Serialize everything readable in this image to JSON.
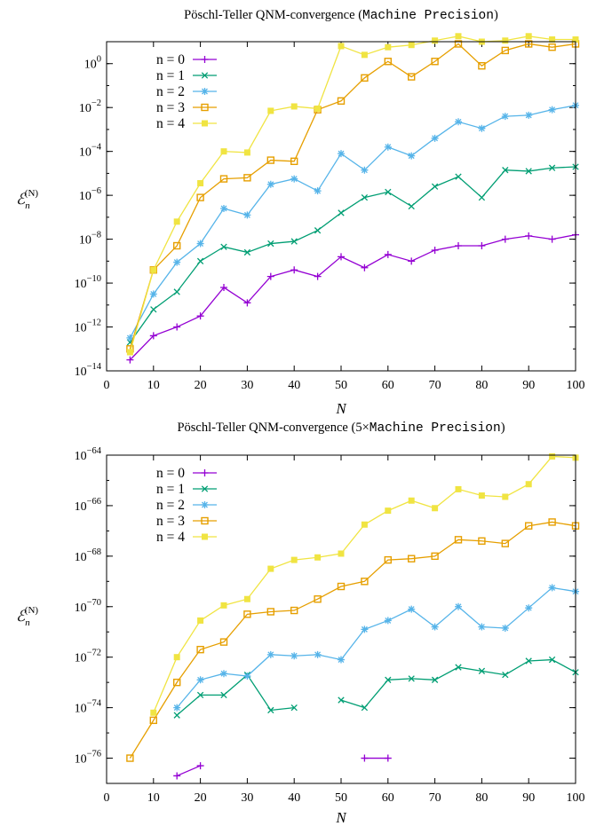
{
  "chart_data": [
    {
      "type": "line",
      "title": "Pöschl-Teller QNM-convergence",
      "title_mono": "Machine Precision",
      "title_prefix": "",
      "xlabel": "N",
      "ylabel": "E_n^(N)",
      "ylabel_main": "ℰ",
      "ylabel_sub": "n",
      "ylabel_sup": "(N)",
      "yscale": "log",
      "xlim": [
        0,
        100
      ],
      "ylim_exp": [
        -14,
        1
      ],
      "xticks": [
        "0",
        "10",
        "20",
        "30",
        "40",
        "50",
        "60",
        "70",
        "80",
        "90",
        "100"
      ],
      "yticks": [
        {
          "exp": 0,
          "label": "0"
        },
        {
          "exp": -2,
          "label": "−2"
        },
        {
          "exp": -4,
          "label": "−4"
        },
        {
          "exp": -6,
          "label": "−6"
        },
        {
          "exp": -8,
          "label": "−8"
        },
        {
          "exp": -10,
          "label": "−10"
        },
        {
          "exp": -12,
          "label": "−12"
        },
        {
          "exp": -14,
          "label": "−14"
        }
      ],
      "legend_position": "top-left",
      "series": [
        {
          "name": "n = 0",
          "color": "#9400d3",
          "marker": "plus",
          "x": [
            5,
            10,
            15,
            20,
            25,
            30,
            35,
            40,
            45,
            50,
            55,
            60,
            65,
            70,
            75,
            80,
            85,
            90,
            95,
            100
          ],
          "y_exp": [
            -13.5,
            -12.4,
            -12.0,
            -11.5,
            -10.2,
            -10.9,
            -9.7,
            -9.4,
            -9.7,
            -8.8,
            -9.3,
            -8.7,
            -9.0,
            -8.5,
            -8.3,
            -8.3,
            -8.0,
            -7.85,
            -8.0,
            -7.8
          ]
        },
        {
          "name": "n = 1",
          "color": "#009e73",
          "marker": "cross",
          "x": [
            5,
            10,
            15,
            20,
            25,
            30,
            35,
            40,
            45,
            50,
            55,
            60,
            65,
            70,
            75,
            80,
            85,
            90,
            95,
            100
          ],
          "y_exp": [
            -12.7,
            -11.2,
            -10.4,
            -9.0,
            -8.35,
            -8.6,
            -8.2,
            -8.1,
            -7.6,
            -6.8,
            -6.1,
            -5.85,
            -6.5,
            -5.6,
            -5.15,
            -6.1,
            -4.85,
            -4.9,
            -4.75,
            -4.7
          ]
        },
        {
          "name": "n = 2",
          "color": "#56b4e9",
          "marker": "star",
          "x": [
            5,
            10,
            15,
            20,
            25,
            30,
            35,
            40,
            45,
            50,
            55,
            60,
            65,
            70,
            75,
            80,
            85,
            90,
            95,
            100
          ],
          "y_exp": [
            -12.5,
            -10.5,
            -9.05,
            -8.2,
            -6.6,
            -6.9,
            -5.5,
            -5.25,
            -5.8,
            -4.1,
            -4.85,
            -3.8,
            -4.2,
            -3.4,
            -2.65,
            -2.95,
            -2.4,
            -2.35,
            -2.1,
            -1.9
          ]
        },
        {
          "name": "n = 3",
          "color": "#e69f00",
          "marker": "box",
          "x": [
            5,
            10,
            15,
            20,
            25,
            30,
            35,
            40,
            45,
            50,
            55,
            60,
            65,
            70,
            75,
            80,
            85,
            90,
            95,
            100
          ],
          "y_exp": [
            -13.0,
            -9.4,
            -8.3,
            -6.1,
            -5.25,
            -5.2,
            -4.4,
            -4.45,
            -2.1,
            -1.7,
            -0.65,
            0.1,
            -0.6,
            0.1,
            0.9,
            -0.1,
            0.6,
            0.9,
            0.75,
            0.9
          ]
        },
        {
          "name": "n = 4",
          "color": "#f0e442",
          "marker": "square",
          "x": [
            5,
            10,
            15,
            20,
            25,
            30,
            35,
            40,
            45,
            50,
            55,
            60,
            65,
            70,
            75,
            80,
            85,
            90,
            95,
            100
          ],
          "y_exp": [
            -13.15,
            -9.4,
            -7.2,
            -5.45,
            -4.0,
            -4.05,
            -2.15,
            -1.95,
            -2.05,
            0.8,
            0.4,
            0.75,
            0.85,
            1.05,
            1.25,
            1.0,
            1.05,
            1.25,
            1.1,
            1.1
          ]
        }
      ]
    },
    {
      "type": "line",
      "title": "Pöschl-Teller QNM-convergence",
      "title_mono": "Machine Precision",
      "title_prefix": "5×",
      "xlabel": "N",
      "ylabel": "E_n^(N)",
      "ylabel_main": "ℰ",
      "ylabel_sub": "n",
      "ylabel_sup": "(N)",
      "yscale": "log",
      "xlim": [
        0,
        100
      ],
      "ylim_exp": [
        -77,
        -64
      ],
      "xticks": [
        "0",
        "10",
        "20",
        "30",
        "40",
        "50",
        "60",
        "70",
        "80",
        "90",
        "100"
      ],
      "yticks": [
        {
          "exp": -64,
          "label": "−64"
        },
        {
          "exp": -66,
          "label": "−66"
        },
        {
          "exp": -68,
          "label": "−68"
        },
        {
          "exp": -70,
          "label": "−70"
        },
        {
          "exp": -72,
          "label": "−72"
        },
        {
          "exp": -74,
          "label": "−74"
        },
        {
          "exp": -76,
          "label": "−76"
        }
      ],
      "legend_position": "top-left",
      "series": [
        {
          "name": "n = 0",
          "color": "#9400d3",
          "marker": "plus",
          "x": [
            15,
            20,
            null,
            55,
            60
          ],
          "y_exp": [
            -76.7,
            -76.3,
            null,
            -76.0,
            -76.0
          ]
        },
        {
          "name": "n = 1",
          "color": "#009e73",
          "marker": "cross",
          "x": [
            15,
            20,
            25,
            30,
            35,
            40,
            null,
            50,
            55,
            60,
            65,
            70,
            75,
            80,
            85,
            90,
            95,
            100
          ],
          "y_exp": [
            -74.3,
            -73.5,
            -73.5,
            -72.7,
            -74.1,
            -74.0,
            null,
            -73.7,
            -74.0,
            -72.9,
            -72.85,
            -72.9,
            -72.4,
            -72.55,
            -72.7,
            -72.15,
            -72.1,
            -72.6
          ]
        },
        {
          "name": "n = 2",
          "color": "#56b4e9",
          "marker": "star",
          "x": [
            15,
            20,
            25,
            30,
            35,
            40,
            45,
            50,
            55,
            60,
            65,
            70,
            75,
            80,
            85,
            90,
            95,
            100
          ],
          "y_exp": [
            -74.0,
            -72.9,
            -72.65,
            -72.75,
            -71.9,
            -71.95,
            -71.9,
            -72.1,
            -70.9,
            -70.55,
            -70.1,
            -70.8,
            -70.0,
            -70.8,
            -70.85,
            -70.05,
            -69.25,
            -69.4
          ]
        },
        {
          "name": "n = 3",
          "color": "#e69f00",
          "marker": "box",
          "x": [
            5,
            10,
            15,
            20,
            25,
            30,
            35,
            40,
            45,
            50,
            55,
            60,
            65,
            70,
            75,
            80,
            85,
            90,
            95,
            100
          ],
          "y_exp": [
            -76.0,
            -74.5,
            -73.0,
            -71.7,
            -71.4,
            -70.3,
            -70.2,
            -70.15,
            -69.7,
            -69.2,
            -69.0,
            -68.15,
            -68.1,
            -68.0,
            -67.35,
            -67.4,
            -67.5,
            -66.8,
            -66.65,
            -66.8
          ]
        },
        {
          "name": "n = 4",
          "color": "#f0e442",
          "marker": "square",
          "x": [
            10,
            15,
            20,
            25,
            30,
            35,
            40,
            45,
            50,
            55,
            60,
            65,
            70,
            75,
            80,
            85,
            90,
            95,
            100
          ],
          "y_exp": [
            -74.2,
            -72.0,
            -70.55,
            -69.95,
            -69.7,
            -68.5,
            -68.15,
            -68.05,
            -67.9,
            -66.75,
            -66.2,
            -65.8,
            -66.1,
            -65.35,
            -65.6,
            -65.65,
            -65.15,
            -64.05,
            -64.1
          ]
        }
      ]
    }
  ]
}
